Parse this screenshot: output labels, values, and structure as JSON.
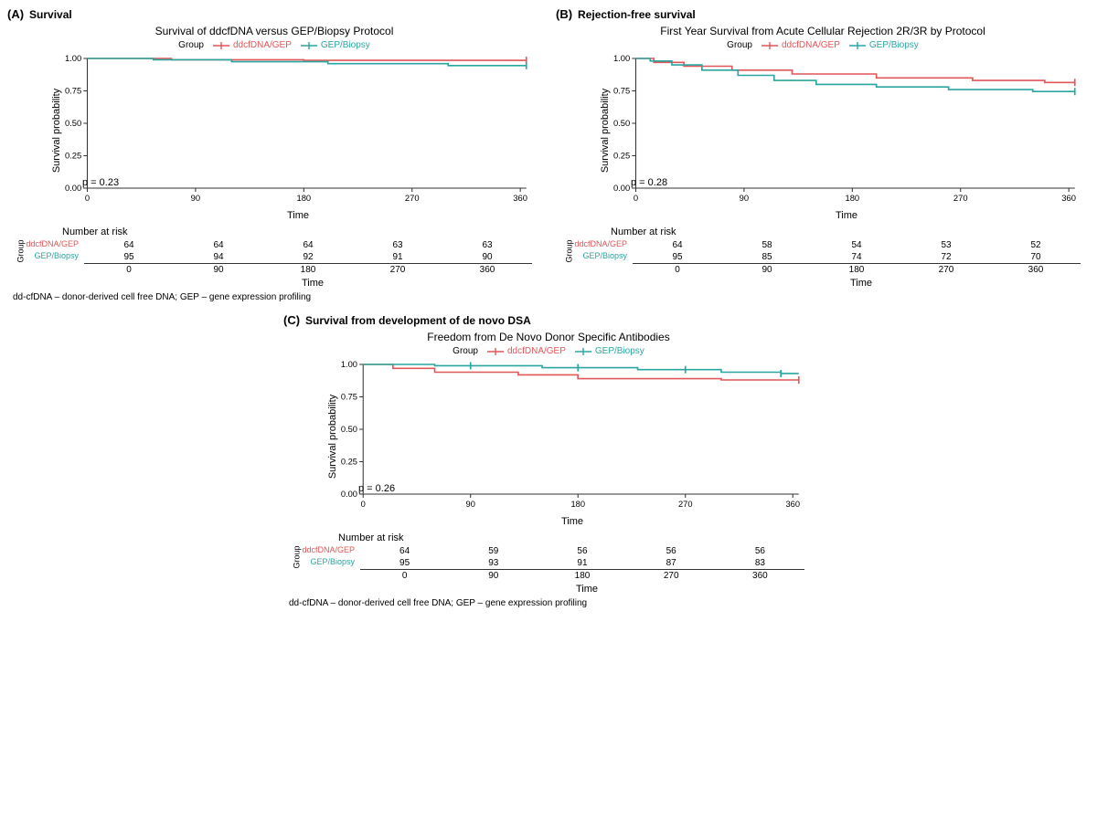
{
  "colors": {
    "group1": "#e15759",
    "group2": "#2aa6a0",
    "axis": "#333333",
    "tick": "#333333",
    "grid": "#d8d8d8",
    "bg": "#ffffff",
    "text": "#000000"
  },
  "fonts": {
    "title_size": 12,
    "axis_label_size": 11,
    "tick_size": 10,
    "legend_size": 10,
    "panel_letter_size": 13
  },
  "legend": {
    "label": "Group",
    "items": [
      {
        "key": "group1",
        "label": "ddcfDNA/GEP"
      },
      {
        "key": "group2",
        "label": "GEP/Biopsy"
      }
    ],
    "marker": "plus"
  },
  "axes": {
    "xlabel": "Time",
    "ylabel": "Survival probability",
    "xlim": [
      0,
      365
    ],
    "xticks": [
      0,
      90,
      180,
      270,
      360
    ],
    "ylim": [
      0,
      1
    ],
    "yticks": [
      0.0,
      0.25,
      0.5,
      0.75,
      1.0
    ],
    "ytick_labels": [
      "0.00",
      "0.25",
      "0.50",
      "0.75",
      "1.00"
    ]
  },
  "footnote": "dd-cfDNA – donor-derived cell free DNA; GEP – gene expression profiling",
  "panels": {
    "A": {
      "letter": "(A)",
      "label": "Survival",
      "title": "Survival of ddcfDNA versus GEP/Biopsy Protocol",
      "pvalue": "p = 0.23",
      "series": {
        "group1": [
          [
            0,
            1.0
          ],
          [
            70,
            1.0
          ],
          [
            70,
            0.99
          ],
          [
            180,
            0.99
          ],
          [
            180,
            0.985
          ],
          [
            365,
            0.985
          ]
        ],
        "group2": [
          [
            0,
            1.0
          ],
          [
            55,
            1.0
          ],
          [
            55,
            0.99
          ],
          [
            120,
            0.99
          ],
          [
            120,
            0.975
          ],
          [
            200,
            0.975
          ],
          [
            200,
            0.96
          ],
          [
            300,
            0.96
          ],
          [
            300,
            0.945
          ],
          [
            365,
            0.945
          ]
        ]
      },
      "censor": {
        "group1": [
          [
            365,
            0.985
          ]
        ],
        "group2": [
          [
            365,
            0.945
          ]
        ]
      },
      "risk": {
        "title": "Number at risk",
        "rows": [
          {
            "group": "group1",
            "label": "ddcfDNA/GEP",
            "counts": [
              64,
              64,
              64,
              63,
              63
            ]
          },
          {
            "group": "group2",
            "label": "GEP/Biopsy",
            "counts": [
              95,
              94,
              92,
              91,
              90
            ]
          }
        ],
        "ticks": [
          0,
          90,
          180,
          270,
          360
        ]
      }
    },
    "B": {
      "letter": "(B)",
      "label": "Rejection-free survival",
      "title": "First Year Survival from Acute Cellular Rejection 2R/3R by Protocol",
      "pvalue": "p = 0.28",
      "series": {
        "group1": [
          [
            0,
            1.0
          ],
          [
            15,
            1.0
          ],
          [
            15,
            0.97
          ],
          [
            40,
            0.97
          ],
          [
            40,
            0.94
          ],
          [
            80,
            0.94
          ],
          [
            80,
            0.91
          ],
          [
            130,
            0.91
          ],
          [
            130,
            0.88
          ],
          [
            200,
            0.88
          ],
          [
            200,
            0.85
          ],
          [
            280,
            0.85
          ],
          [
            280,
            0.83
          ],
          [
            340,
            0.83
          ],
          [
            340,
            0.815
          ],
          [
            365,
            0.815
          ]
        ],
        "group2": [
          [
            0,
            1.0
          ],
          [
            12,
            1.0
          ],
          [
            12,
            0.98
          ],
          [
            30,
            0.98
          ],
          [
            30,
            0.95
          ],
          [
            55,
            0.95
          ],
          [
            55,
            0.91
          ],
          [
            85,
            0.91
          ],
          [
            85,
            0.87
          ],
          [
            115,
            0.87
          ],
          [
            115,
            0.83
          ],
          [
            150,
            0.83
          ],
          [
            150,
            0.8
          ],
          [
            200,
            0.8
          ],
          [
            200,
            0.78
          ],
          [
            260,
            0.78
          ],
          [
            260,
            0.76
          ],
          [
            330,
            0.76
          ],
          [
            330,
            0.745
          ],
          [
            365,
            0.745
          ]
        ]
      },
      "censor": {
        "group1": [
          [
            365,
            0.815
          ]
        ],
        "group2": [
          [
            365,
            0.745
          ]
        ]
      },
      "risk": {
        "title": "Number at risk",
        "rows": [
          {
            "group": "group1",
            "label": "ddcfDNA/GEP",
            "counts": [
              64,
              58,
              54,
              53,
              52
            ]
          },
          {
            "group": "group2",
            "label": "GEP/Biopsy",
            "counts": [
              95,
              85,
              74,
              72,
              70
            ]
          }
        ],
        "ticks": [
          0,
          90,
          180,
          270,
          360
        ]
      }
    },
    "C": {
      "letter": "(C)",
      "label": "Survival from development of de novo DSA",
      "title": "Freedom from De Novo Donor Specific Antibodies",
      "pvalue": "p = 0.26",
      "series": {
        "group1": [
          [
            0,
            1.0
          ],
          [
            25,
            1.0
          ],
          [
            25,
            0.97
          ],
          [
            60,
            0.97
          ],
          [
            60,
            0.94
          ],
          [
            130,
            0.94
          ],
          [
            130,
            0.92
          ],
          [
            180,
            0.92
          ],
          [
            180,
            0.89
          ],
          [
            300,
            0.89
          ],
          [
            300,
            0.88
          ],
          [
            365,
            0.88
          ]
        ],
        "group2": [
          [
            0,
            1.0
          ],
          [
            60,
            1.0
          ],
          [
            60,
            0.99
          ],
          [
            150,
            0.99
          ],
          [
            150,
            0.975
          ],
          [
            230,
            0.975
          ],
          [
            230,
            0.96
          ],
          [
            300,
            0.96
          ],
          [
            300,
            0.94
          ],
          [
            350,
            0.94
          ],
          [
            350,
            0.93
          ],
          [
            365,
            0.93
          ]
        ]
      },
      "censor": {
        "group1": [
          [
            365,
            0.88
          ]
        ],
        "group2": [
          [
            90,
            0.99
          ],
          [
            180,
            0.975
          ],
          [
            270,
            0.96
          ],
          [
            350,
            0.93
          ]
        ]
      },
      "risk": {
        "title": "Number at risk",
        "rows": [
          {
            "group": "group1",
            "label": "ddcfDNA/GEP",
            "counts": [
              64,
              59,
              56,
              56,
              56
            ]
          },
          {
            "group": "group2",
            "label": "GEP/Biopsy",
            "counts": [
              95,
              93,
              91,
              87,
              83
            ]
          }
        ],
        "ticks": [
          0,
          90,
          180,
          270,
          360
        ]
      }
    }
  }
}
